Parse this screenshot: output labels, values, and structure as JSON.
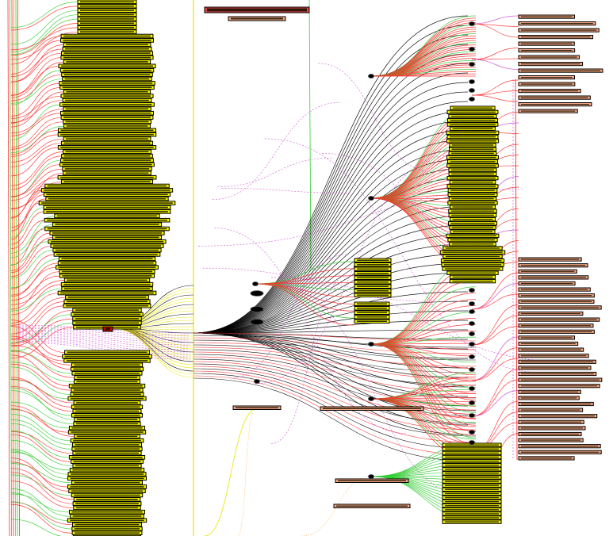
{
  "diagram": {
    "type": "dependency-graph",
    "labels_legible": false,
    "colors": {
      "background": "#ffffff",
      "yellow_node_fill": "#f4f400",
      "salmon_node_fill": "#f4a582",
      "node_border": "#000000",
      "dense_label_fill": "#111100",
      "edge_red": "#ff2a2a",
      "edge_green": "#33cc33",
      "edge_black": "#000000",
      "edge_magenta": "#cc44cc",
      "edge_yellow": "#e6e600",
      "edge_orange": "#ff8c00",
      "hub_fill": "#000000"
    },
    "legend": "none"
  }
}
